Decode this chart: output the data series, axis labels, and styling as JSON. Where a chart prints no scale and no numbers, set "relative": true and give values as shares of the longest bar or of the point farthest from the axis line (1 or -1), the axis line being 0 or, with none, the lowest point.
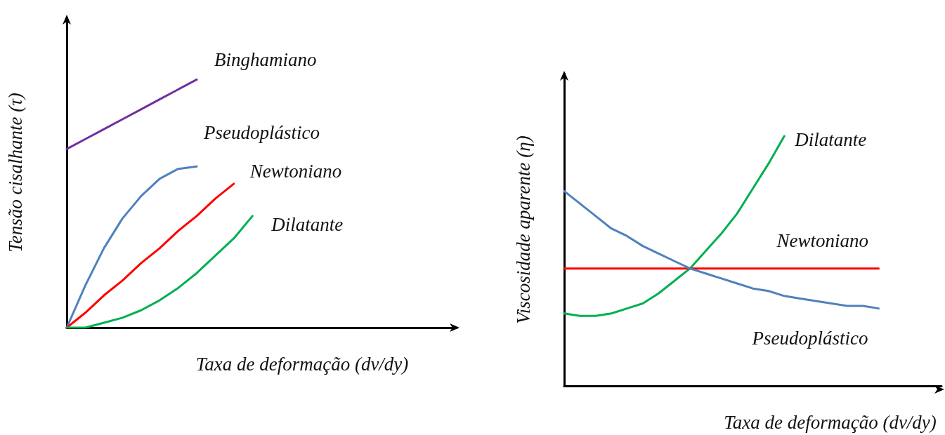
{
  "chart_data": [
    {
      "type": "line",
      "relative": true,
      "ylabel": "Tensão cisalhante (τ)",
      "xlabel": "Taxa de deformação (dv/dy)",
      "categories": [
        null,
        null,
        null,
        null,
        null,
        null,
        null,
        null,
        null,
        null,
        null,
        null,
        null,
        null,
        null,
        null,
        null,
        null,
        null,
        null,
        null,
        null
      ],
      "grid": false,
      "legend": false,
      "marker": "none",
      "line_style": "solid",
      "series": [
        {
          "name": "Binghamiano",
          "color": "#7030a0",
          "values": [
            0.72,
            0.76,
            0.8,
            0.84,
            0.88,
            0.92,
            0.96,
            1.0,
            null,
            null,
            null,
            null,
            null,
            null,
            null,
            null,
            null,
            null,
            null,
            null,
            null,
            null
          ]
        },
        {
          "name": "Pseudoplástico",
          "color": "#4f81bd",
          "values": [
            0,
            0.17,
            0.32,
            0.44,
            0.53,
            0.6,
            0.64,
            0.65,
            null,
            null,
            null,
            null,
            null,
            null,
            null,
            null,
            null,
            null,
            null,
            null,
            null,
            null
          ]
        },
        {
          "name": "Newtoniano",
          "color": "#ff0000",
          "values": [
            0,
            0.06,
            0.13,
            0.19,
            0.26,
            0.32,
            0.39,
            0.45,
            0.52,
            0.58,
            null,
            null,
            null,
            null,
            null,
            null,
            null,
            null,
            null,
            null,
            null,
            null
          ]
        },
        {
          "name": "Dilatante",
          "color": "#00b050",
          "values": [
            0,
            0,
            0.02,
            0.04,
            0.07,
            0.11,
            0.16,
            0.22,
            0.29,
            0.36,
            0.45,
            null,
            null,
            null,
            null,
            null,
            null,
            null,
            null,
            null,
            null,
            null
          ]
        }
      ]
    },
    {
      "type": "line",
      "relative": true,
      "ylabel": "Viscosidade aparente (η)",
      "xlabel": "Taxa de deformação (dv/dy)",
      "categories": [
        null,
        null,
        null,
        null,
        null,
        null,
        null,
        null,
        null,
        null,
        null,
        null,
        null,
        null,
        null,
        null,
        null,
        null,
        null,
        null,
        null,
        null,
        null,
        null,
        null
      ],
      "grid": false,
      "legend": false,
      "marker": "none",
      "line_style": "solid",
      "series": [
        {
          "name": "Dilatante",
          "color": "#00b050",
          "values": [
            0.29,
            0.28,
            0.28,
            0.29,
            0.31,
            0.33,
            0.37,
            0.42,
            0.47,
            0.54,
            0.61,
            0.69,
            0.79,
            0.89,
            1.0,
            null,
            null,
            null,
            null,
            null,
            null,
            null,
            null,
            null,
            null
          ]
        },
        {
          "name": "Newtoniano",
          "color": "#ff0000",
          "values": [
            0.47,
            0.47,
            0.47,
            0.47,
            0.47,
            0.47,
            0.47,
            0.47,
            0.47,
            0.47,
            0.47,
            0.47,
            0.47,
            0.47,
            0.47,
            0.47,
            0.47,
            0.47,
            0.47,
            0.47,
            0.47,
            null,
            null,
            null,
            null
          ]
        },
        {
          "name": "Pseudoplástico",
          "color": "#4f81bd",
          "values": [
            0.78,
            0.73,
            0.68,
            0.63,
            0.6,
            0.56,
            0.53,
            0.5,
            0.47,
            0.45,
            0.43,
            0.41,
            0.39,
            0.38,
            0.36,
            0.35,
            0.34,
            0.33,
            0.32,
            0.32,
            0.31,
            null,
            null,
            null,
            null
          ]
        }
      ]
    }
  ]
}
